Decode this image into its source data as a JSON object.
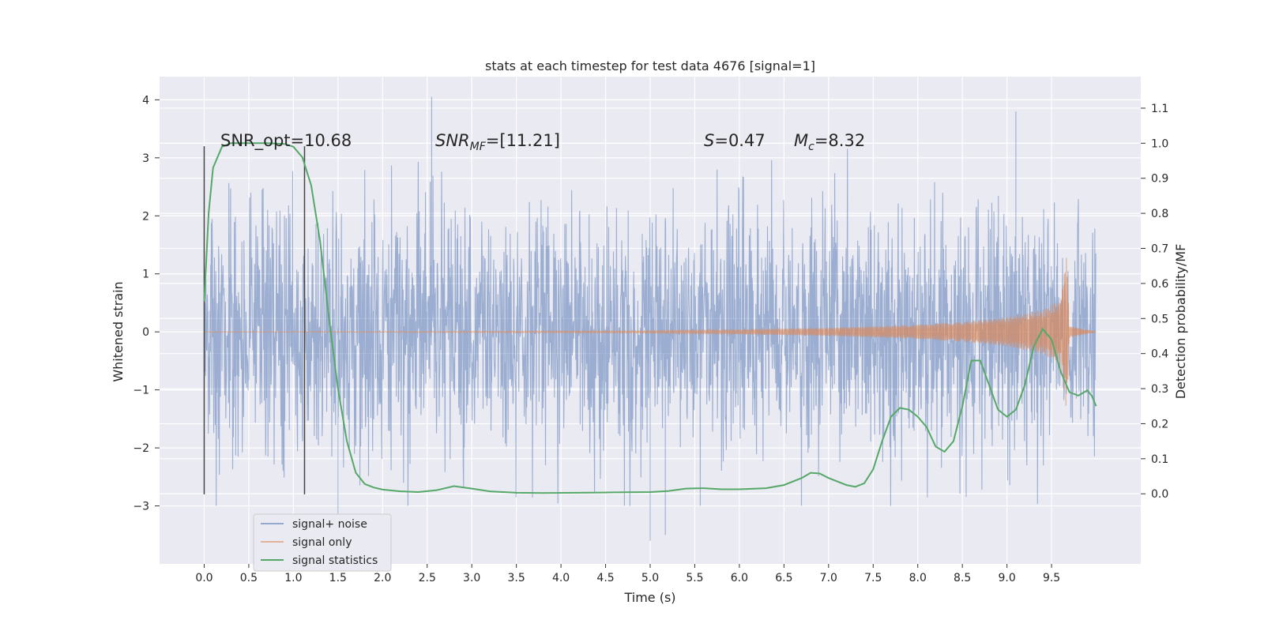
{
  "chart_data": {
    "type": "line",
    "title": "stats at each timestep for test data 4676 [signal=1]",
    "xlabel": "Time (s)",
    "ylabel_left": "Whitened strain",
    "ylabel_right": "Detection probability/MF",
    "xlim": [
      -0.5,
      10.5
    ],
    "ylim_left": [
      -4.0,
      4.4
    ],
    "ylim_right": [
      -0.2,
      1.19
    ],
    "x_ticks": [
      "0.0",
      "0.5",
      "1.0",
      "1.5",
      "2.0",
      "2.5",
      "3.0",
      "3.5",
      "4.0",
      "4.5",
      "5.0",
      "5.5",
      "6.0",
      "6.5",
      "7.0",
      "7.5",
      "8.0",
      "8.5",
      "9.0",
      "9.5"
    ],
    "y_left_ticks": [
      "−3",
      "−2",
      "−1",
      "0",
      "1",
      "2",
      "3",
      "4"
    ],
    "y_right_ticks": [
      "0.0",
      "0.1",
      "0.2",
      "0.3",
      "0.4",
      "0.5",
      "0.6",
      "0.7",
      "0.8",
      "0.9",
      "1.0",
      "1.1"
    ],
    "grid": true,
    "background": "#eaeaf2",
    "legend_position": "lower-left",
    "annotations": {
      "snr_opt": "SNR_opt=10.68",
      "snr_mf_main": "SNR",
      "snr_mf_sub": "MF",
      "snr_mf_val": "=[11.21]",
      "s_main": "S",
      "s_val": "=0.47",
      "mc_main": "M",
      "mc_sub": "c",
      "mc_val": "=8.32"
    },
    "vertical_markers": [
      0.0,
      1.125
    ],
    "series": [
      {
        "name": "signal+ noise",
        "color": "#4c72b0",
        "axis": "left",
        "description": "whitened strain time series (noise + injected signal), approx Gaussian, std ~1",
        "x_range": [
          0.0,
          10.0
        ],
        "peaks": [
          {
            "x": 2.55,
            "y": 4.05
          },
          {
            "x": 9.1,
            "y": 3.8
          },
          {
            "x": 5.0,
            "y": -3.6
          },
          {
            "x": 5.17,
            "y": -3.5
          },
          {
            "x": 1.5,
            "y": -3.2
          }
        ]
      },
      {
        "name": "signal only",
        "color": "#dd8452",
        "axis": "left",
        "description": "chirp waveform growing in amplitude, merger near t=9.67",
        "envelope": [
          [
            0.0,
            0.0
          ],
          [
            5.0,
            0.02
          ],
          [
            6.0,
            0.04
          ],
          [
            7.0,
            0.07
          ],
          [
            8.0,
            0.12
          ],
          [
            8.5,
            0.17
          ],
          [
            9.0,
            0.25
          ],
          [
            9.4,
            0.38
          ],
          [
            9.6,
            0.55
          ],
          [
            9.67,
            1.4
          ],
          [
            9.7,
            0.1
          ],
          [
            10.0,
            0.0
          ]
        ]
      },
      {
        "name": "signal statistics",
        "color": "#55a868",
        "axis": "right",
        "points": [
          [
            0.0,
            0.55
          ],
          [
            0.05,
            0.8
          ],
          [
            0.1,
            0.93
          ],
          [
            0.2,
            0.99
          ],
          [
            0.3,
            1.0
          ],
          [
            0.5,
            1.0
          ],
          [
            0.7,
            1.0
          ],
          [
            0.9,
            0.998
          ],
          [
            1.0,
            0.99
          ],
          [
            1.1,
            0.96
          ],
          [
            1.2,
            0.88
          ],
          [
            1.3,
            0.72
          ],
          [
            1.4,
            0.5
          ],
          [
            1.5,
            0.3
          ],
          [
            1.6,
            0.15
          ],
          [
            1.7,
            0.06
          ],
          [
            1.8,
            0.028
          ],
          [
            1.9,
            0.018
          ],
          [
            2.0,
            0.012
          ],
          [
            2.2,
            0.007
          ],
          [
            2.4,
            0.005
          ],
          [
            2.6,
            0.01
          ],
          [
            2.8,
            0.022
          ],
          [
            3.0,
            0.015
          ],
          [
            3.2,
            0.007
          ],
          [
            3.5,
            0.003
          ],
          [
            3.8,
            0.002
          ],
          [
            4.2,
            0.003
          ],
          [
            4.6,
            0.004
          ],
          [
            5.0,
            0.005
          ],
          [
            5.2,
            0.008
          ],
          [
            5.4,
            0.015
          ],
          [
            5.6,
            0.016
          ],
          [
            5.8,
            0.013
          ],
          [
            6.0,
            0.013
          ],
          [
            6.3,
            0.016
          ],
          [
            6.5,
            0.025
          ],
          [
            6.7,
            0.045
          ],
          [
            6.8,
            0.06
          ],
          [
            6.9,
            0.058
          ],
          [
            7.0,
            0.045
          ],
          [
            7.2,
            0.025
          ],
          [
            7.3,
            0.02
          ],
          [
            7.4,
            0.03
          ],
          [
            7.5,
            0.07
          ],
          [
            7.6,
            0.15
          ],
          [
            7.7,
            0.22
          ],
          [
            7.8,
            0.245
          ],
          [
            7.9,
            0.24
          ],
          [
            8.0,
            0.22
          ],
          [
            8.1,
            0.19
          ],
          [
            8.2,
            0.135
          ],
          [
            8.3,
            0.12
          ],
          [
            8.4,
            0.15
          ],
          [
            8.5,
            0.25
          ],
          [
            8.6,
            0.38
          ],
          [
            8.7,
            0.38
          ],
          [
            8.8,
            0.31
          ],
          [
            8.9,
            0.24
          ],
          [
            9.0,
            0.22
          ],
          [
            9.1,
            0.24
          ],
          [
            9.2,
            0.31
          ],
          [
            9.3,
            0.42
          ],
          [
            9.4,
            0.47
          ],
          [
            9.5,
            0.44
          ],
          [
            9.6,
            0.35
          ],
          [
            9.7,
            0.29
          ],
          [
            9.8,
            0.28
          ],
          [
            9.9,
            0.295
          ],
          [
            9.95,
            0.28
          ],
          [
            10.0,
            0.25
          ]
        ]
      }
    ]
  }
}
